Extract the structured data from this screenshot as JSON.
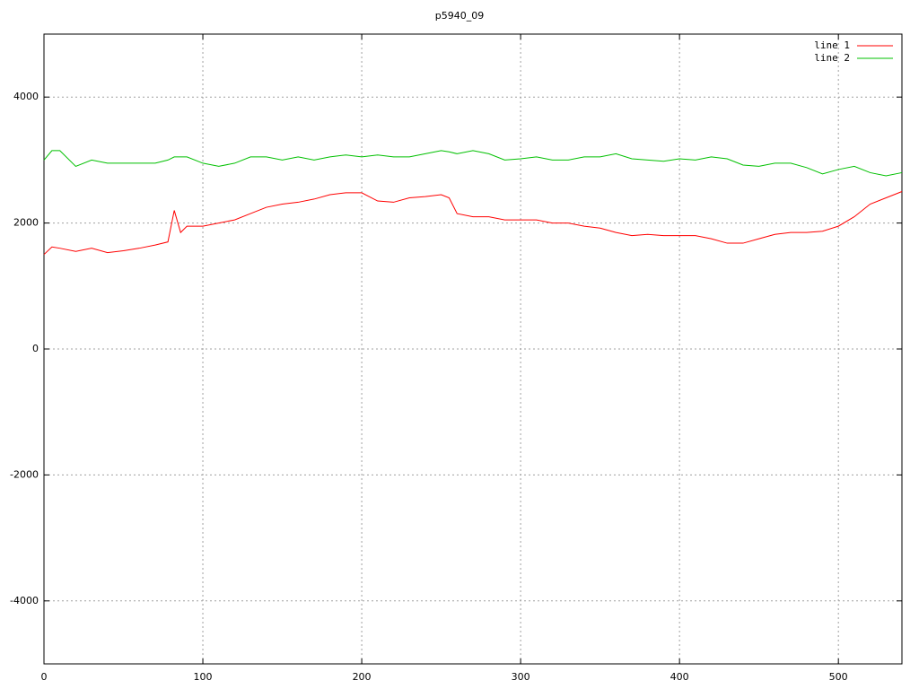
{
  "chart_data": {
    "type": "line",
    "title": "p5940_09",
    "x": [
      0,
      5,
      10,
      20,
      30,
      40,
      50,
      60,
      70,
      78,
      82,
      86,
      90,
      100,
      110,
      120,
      130,
      140,
      150,
      160,
      170,
      180,
      190,
      200,
      210,
      220,
      230,
      240,
      250,
      255,
      260,
      270,
      280,
      290,
      300,
      310,
      320,
      330,
      340,
      350,
      360,
      370,
      380,
      390,
      400,
      410,
      420,
      430,
      440,
      450,
      460,
      470,
      480,
      490,
      500,
      510,
      520,
      530,
      540
    ],
    "series": [
      {
        "name": "line 1",
        "color": "#ff0000",
        "values": [
          1500,
          1620,
          1600,
          1550,
          1600,
          1530,
          1560,
          1600,
          1650,
          1700,
          2200,
          1850,
          1950,
          1950,
          2000,
          2050,
          2150,
          2250,
          2300,
          2330,
          2380,
          2450,
          2480,
          2480,
          2350,
          2330,
          2400,
          2420,
          2450,
          2400,
          2150,
          2100,
          2100,
          2050,
          2050,
          2050,
          2000,
          2000,
          1950,
          1920,
          1850,
          1800,
          1820,
          1800,
          1800,
          1800,
          1750,
          1680,
          1680,
          1750,
          1820,
          1850,
          1850,
          1870,
          1950,
          2100,
          2300,
          2400,
          2500
        ]
      },
      {
        "name": "line 2",
        "color": "#00c000",
        "values": [
          3000,
          3150,
          3150,
          2900,
          3000,
          2950,
          2950,
          2950,
          2950,
          3000,
          3050,
          3050,
          3050,
          2950,
          2900,
          2950,
          3050,
          3050,
          3000,
          3050,
          3000,
          3050,
          3080,
          3050,
          3080,
          3050,
          3050,
          3100,
          3150,
          3130,
          3100,
          3150,
          3100,
          3000,
          3020,
          3050,
          3000,
          3000,
          3050,
          3050,
          3100,
          3020,
          3000,
          2980,
          3020,
          3000,
          3050,
          3020,
          2920,
          2900,
          2950,
          2950,
          2880,
          2780,
          2850,
          2900,
          2800,
          2750,
          2800
        ]
      }
    ],
    "xlim": [
      0,
      540
    ],
    "ylim": [
      -5000,
      5000
    ],
    "xticks": [
      0,
      100,
      200,
      300,
      400,
      500
    ],
    "yticks": [
      -4000,
      -2000,
      0,
      2000,
      4000
    ],
    "grid": true,
    "legend": "top-right"
  }
}
